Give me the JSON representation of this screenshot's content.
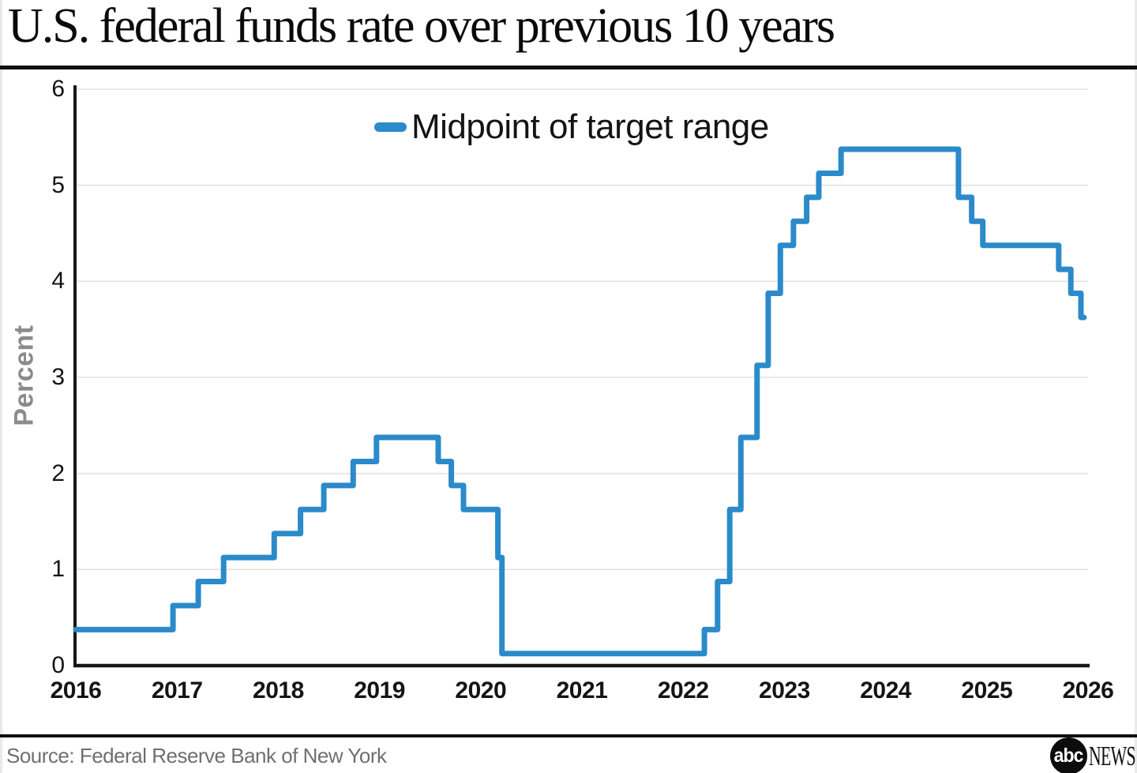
{
  "header": {
    "title": "U.S. federal funds rate over previous 10 years"
  },
  "chart_data": {
    "type": "line",
    "subtype": "step",
    "title": "U.S. federal funds rate over previous 10 years",
    "xlabel": "",
    "ylabel": "Percent",
    "legend": {
      "label": "Midpoint of target range",
      "position": "top-center"
    },
    "xlim": [
      2016,
      2026
    ],
    "ylim": [
      0,
      6
    ],
    "x_ticks": [
      2016,
      2017,
      2018,
      2019,
      2020,
      2021,
      2022,
      2023,
      2024,
      2025,
      2026
    ],
    "y_ticks": [
      0,
      1,
      2,
      3,
      4,
      5,
      6
    ],
    "grid": "horizontal",
    "colors": {
      "line": "#2b8aca",
      "grid": "#e2e2e2",
      "axis": "#161616"
    },
    "series": [
      {
        "name": "Midpoint of target range",
        "points_year_percent": [
          [
            2016.0,
            0.375
          ],
          [
            2016.96,
            0.625
          ],
          [
            2017.21,
            0.875
          ],
          [
            2017.46,
            1.125
          ],
          [
            2017.96,
            1.375
          ],
          [
            2018.22,
            1.625
          ],
          [
            2018.45,
            1.875
          ],
          [
            2018.74,
            2.125
          ],
          [
            2018.97,
            2.375
          ],
          [
            2019.58,
            2.125
          ],
          [
            2019.71,
            1.875
          ],
          [
            2019.83,
            1.625
          ],
          [
            2020.17,
            1.125
          ],
          [
            2020.21,
            0.125
          ],
          [
            2022.21,
            0.375
          ],
          [
            2022.34,
            0.875
          ],
          [
            2022.46,
            1.625
          ],
          [
            2022.57,
            2.375
          ],
          [
            2022.73,
            3.125
          ],
          [
            2022.84,
            3.875
          ],
          [
            2022.96,
            4.375
          ],
          [
            2023.09,
            4.625
          ],
          [
            2023.22,
            4.875
          ],
          [
            2023.34,
            5.125
          ],
          [
            2023.56,
            5.375
          ],
          [
            2024.72,
            4.875
          ],
          [
            2024.85,
            4.625
          ],
          [
            2024.96,
            4.375
          ],
          [
            2025.71,
            4.125
          ],
          [
            2025.83,
            3.875
          ],
          [
            2025.93,
            3.625
          ]
        ],
        "end_year": 2025.96
      }
    ]
  },
  "footer": {
    "source": "Source: Federal Reserve Bank of New York",
    "logo_abc": "abc",
    "logo_news": "NEWS"
  }
}
